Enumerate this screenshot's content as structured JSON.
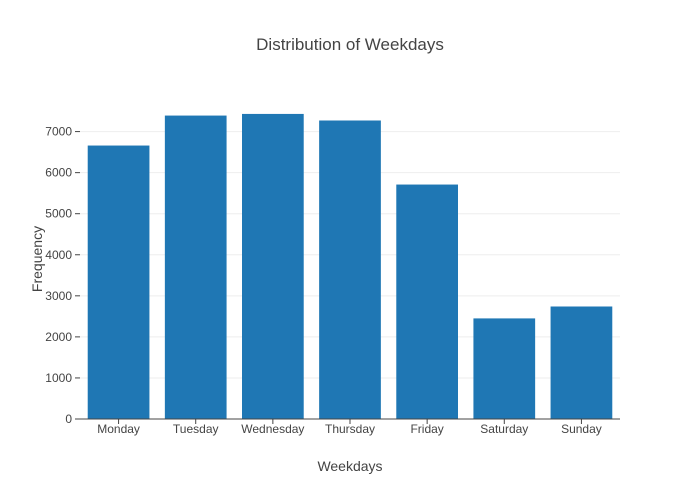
{
  "chart_data": {
    "type": "bar",
    "title": "Distribution of Weekdays",
    "xlabel": "Weekdays",
    "ylabel": "Frequency",
    "categories": [
      "Monday",
      "Tuesday",
      "Wednesday",
      "Thursday",
      "Friday",
      "Saturday",
      "Sunday"
    ],
    "values": [
      6660,
      7390,
      7430,
      7270,
      5710,
      2450,
      2740
    ],
    "ylim": [
      0,
      7800
    ],
    "yticks": [
      0,
      1000,
      2000,
      3000,
      4000,
      5000,
      6000,
      7000
    ],
    "ytick_labels": [
      "0",
      "1000",
      "2000",
      "3000",
      "4000",
      "5000",
      "6000",
      "7000"
    ],
    "grid": true,
    "bar_color": "#1f77b4",
    "grid_color": "#eeeeee",
    "axis_color": "#444444"
  }
}
